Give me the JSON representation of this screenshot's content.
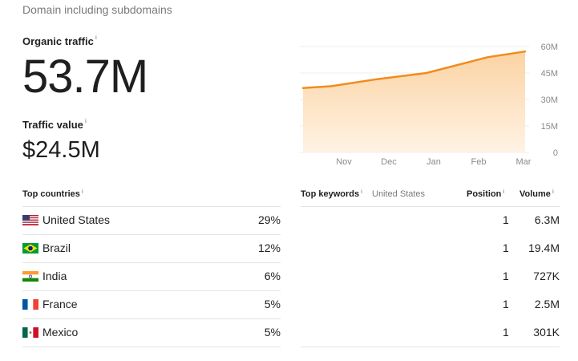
{
  "scope_label": "Domain including subdomains",
  "organic_traffic": {
    "label": "Organic traffic",
    "value": "53.7M"
  },
  "traffic_value": {
    "label": "Traffic value",
    "value": "$24.5M"
  },
  "chart_data": {
    "type": "area",
    "x": [
      "Nov",
      "Dec",
      "Jan",
      "Feb",
      "Mar"
    ],
    "ylim": [
      0,
      60
    ],
    "y_ticks": [
      "60M",
      "45M",
      "30M",
      "15M",
      "0"
    ],
    "series": [
      {
        "points": [
          [
            0,
            36.5
          ],
          [
            0.45,
            37.5
          ],
          [
            1.2,
            41.5
          ],
          [
            2.0,
            45.0
          ],
          [
            3.0,
            54.0
          ],
          [
            3.6,
            57.2
          ]
        ]
      }
    ],
    "colors": {
      "line": "#f08c1e",
      "fill_top": "#fbd3a3",
      "fill_bottom": "#fff3e4"
    },
    "grid": true
  },
  "top_countries": {
    "header": "Top countries",
    "rows": [
      {
        "flag": "us-flag-icon",
        "country": "United States",
        "pct": "29%"
      },
      {
        "flag": "brazil-flag-icon",
        "country": "Brazil",
        "pct": "12%"
      },
      {
        "flag": "india-flag-icon",
        "country": "India",
        "pct": "6%"
      },
      {
        "flag": "france-flag-icon",
        "country": "France",
        "pct": "5%"
      },
      {
        "flag": "mexico-flag-icon",
        "country": "Mexico",
        "pct": "5%"
      }
    ]
  },
  "top_keywords": {
    "header": "Top keywords",
    "country": "United States",
    "position_header": "Position",
    "volume_header": "Volume",
    "rows": [
      {
        "position": "1",
        "volume": "6.3M"
      },
      {
        "position": "1",
        "volume": "19.4M"
      },
      {
        "position": "1",
        "volume": "727K"
      },
      {
        "position": "1",
        "volume": "2.5M"
      },
      {
        "position": "1",
        "volume": "301K"
      }
    ]
  }
}
